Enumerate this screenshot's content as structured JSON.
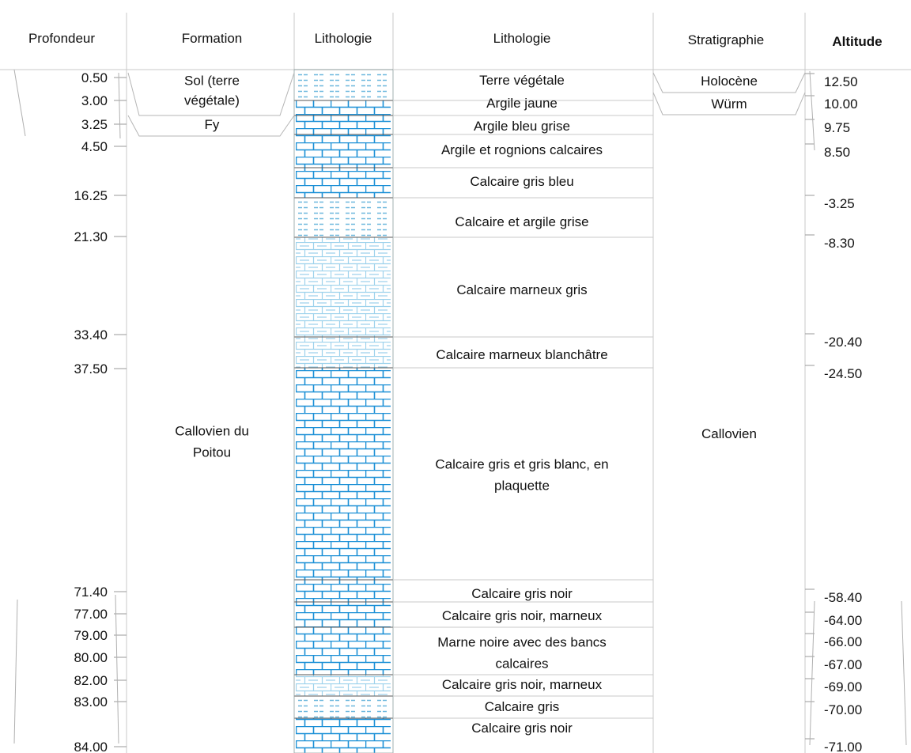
{
  "headers": {
    "profondeur": "Profondeur",
    "formation": "Formation",
    "lithologie_pattern": "Lithologie",
    "lithologie": "Lithologie",
    "stratigraphie": "Stratigraphie",
    "altitude": "Altitude"
  },
  "depths": [
    "0.50",
    "3.00",
    "3.25",
    "4.50",
    "16.25",
    "21.30",
    "33.40",
    "37.50",
    "71.40",
    "77.00",
    "79.00",
    "80.00",
    "82.00",
    "83.00",
    "84.00"
  ],
  "altitudes": [
    "12.50",
    "10.00",
    "9.75",
    "8.50",
    "-3.25",
    "-8.30",
    "-20.40",
    "-24.50",
    "-58.40",
    "-64.00",
    "-66.00",
    "-67.00",
    "-69.00",
    "-70.00",
    "-71.00"
  ],
  "formations": [
    {
      "name": "sol",
      "lines": [
        "Sol (terre",
        "végétale)"
      ]
    },
    {
      "name": "fy",
      "lines": [
        "Fy"
      ]
    },
    {
      "name": "callovien-poitou",
      "lines": [
        "Callovien du",
        "Poitou"
      ]
    }
  ],
  "lithology": [
    {
      "lines": [
        "Terre végétale"
      ],
      "pattern": "clay"
    },
    {
      "lines": [
        "Argile jaune"
      ],
      "pattern": "limestone"
    },
    {
      "lines": [
        "Argile bleu grise"
      ],
      "pattern": "limestone"
    },
    {
      "lines": [
        "Argile et rognions calcaires"
      ],
      "pattern": "limestone"
    },
    {
      "lines": [
        "Calcaire gris bleu"
      ],
      "pattern": "limestone"
    },
    {
      "lines": [
        "Calcaire et argile grise"
      ],
      "pattern": "clay"
    },
    {
      "lines": [
        "Calcaire marneux gris"
      ],
      "pattern": "marly-limestone"
    },
    {
      "lines": [
        "Calcaire marneux blanchâtre"
      ],
      "pattern": "marly-limestone"
    },
    {
      "lines": [
        "Calcaire gris et gris blanc, en",
        "plaquette"
      ],
      "pattern": "limestone"
    },
    {
      "lines": [
        "Calcaire gris noir"
      ],
      "pattern": "limestone"
    },
    {
      "lines": [
        "Calcaire gris noir, marneux"
      ],
      "pattern": "limestone"
    },
    {
      "lines": [
        "Marne noire avec des bancs",
        "calcaires"
      ],
      "pattern": "limestone"
    },
    {
      "lines": [
        "Calcaire gris noir, marneux"
      ],
      "pattern": "marly-limestone"
    },
    {
      "lines": [
        "Calcaire gris"
      ],
      "pattern": "clay"
    },
    {
      "lines": [
        "Calcaire gris noir"
      ],
      "pattern": "limestone"
    }
  ],
  "stratigraphy": [
    {
      "name": "holocene",
      "lines": [
        "Holocène"
      ]
    },
    {
      "name": "wurm",
      "lines": [
        "Würm"
      ]
    },
    {
      "name": "callovien",
      "lines": [
        "Callovien"
      ]
    }
  ],
  "colors": {
    "pattern_blue": "#1a8fd6",
    "pattern_light": "#8fcbe8",
    "grid": "#c8c8c8"
  }
}
